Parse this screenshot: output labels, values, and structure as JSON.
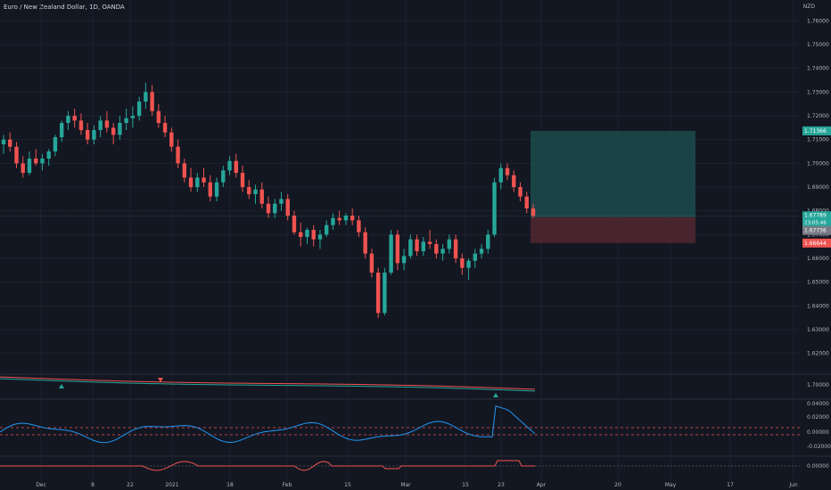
{
  "header": {
    "symbol_title": "Euro / New Zealand Dollar, 1D, OANDA",
    "currency": "NZD"
  },
  "colors": {
    "background": "#131722",
    "up": "#26a69a",
    "down": "#ef5350",
    "grid": "#1e222d",
    "profit_zone": "#1f5b5b",
    "loss_zone": "#5a2a33",
    "osc_line": "#2196f3",
    "osc_hist_up": "#26a69a",
    "osc_hist_down": "#ef5350"
  },
  "price_axis": {
    "labels": [
      "1.76000",
      "1.75000",
      "1.74000",
      "1.73000",
      "1.72000",
      "1.71000",
      "1.70000",
      "1.69000",
      "1.68000",
      "1.67000",
      "1.66000",
      "1.65000",
      "1.64000",
      "1.63000",
      "1.62000"
    ],
    "min": 1.615,
    "max": 1.765
  },
  "markers": {
    "target": "1.71366",
    "current": "1.67789",
    "countdown": "23:05:46",
    "entry": "1.67736",
    "stop": "1.66644"
  },
  "indicator_axes": {
    "ind1": [
      "1.70000"
    ],
    "ind2": [
      "0.04000",
      "0.02000",
      "0.00000",
      "-0.02000"
    ],
    "ind3": [
      "0.00000"
    ]
  },
  "time_axis": {
    "labels": [
      "Dec",
      "8",
      "22",
      "2021",
      "18",
      "Feb",
      "15",
      "Mar",
      "15",
      "23",
      "Apr",
      "20",
      "May",
      "17",
      "Jun"
    ]
  },
  "chart_data": {
    "type": "candlestick",
    "series": [
      {
        "name": "EUR/NZD",
        "ohlc": [
          [
            1.708,
            1.712,
            1.704,
            1.71
          ],
          [
            1.71,
            1.713,
            1.705,
            1.707
          ],
          [
            1.707,
            1.709,
            1.698,
            1.7
          ],
          [
            1.7,
            1.703,
            1.694,
            1.696
          ],
          [
            1.696,
            1.705,
            1.695,
            1.702
          ],
          [
            1.702,
            1.706,
            1.699,
            1.7
          ],
          [
            1.7,
            1.704,
            1.697,
            1.702
          ],
          [
            1.702,
            1.706,
            1.699,
            1.705
          ],
          [
            1.705,
            1.712,
            1.703,
            1.711
          ],
          [
            1.711,
            1.718,
            1.709,
            1.717
          ],
          [
            1.717,
            1.722,
            1.714,
            1.72
          ],
          [
            1.72,
            1.723,
            1.715,
            1.718
          ],
          [
            1.718,
            1.721,
            1.712,
            1.714
          ],
          [
            1.714,
            1.717,
            1.708,
            1.71
          ],
          [
            1.71,
            1.716,
            1.708,
            1.714
          ],
          [
            1.714,
            1.72,
            1.711,
            1.718
          ],
          [
            1.718,
            1.722,
            1.713,
            1.715
          ],
          [
            1.715,
            1.717,
            1.708,
            1.712
          ],
          [
            1.712,
            1.72,
            1.71,
            1.717
          ],
          [
            1.717,
            1.723,
            1.714,
            1.719
          ],
          [
            1.719,
            1.724,
            1.715,
            1.72
          ],
          [
            1.72,
            1.728,
            1.718,
            1.726
          ],
          [
            1.726,
            1.734,
            1.723,
            1.73
          ],
          [
            1.73,
            1.733,
            1.72,
            1.722
          ],
          [
            1.722,
            1.725,
            1.715,
            1.717
          ],
          [
            1.717,
            1.72,
            1.711,
            1.713
          ],
          [
            1.713,
            1.715,
            1.705,
            1.707
          ],
          [
            1.707,
            1.71,
            1.698,
            1.7
          ],
          [
            1.7,
            1.702,
            1.692,
            1.694
          ],
          [
            1.694,
            1.698,
            1.688,
            1.69
          ],
          [
            1.69,
            1.696,
            1.688,
            1.694
          ],
          [
            1.694,
            1.698,
            1.69,
            1.692
          ],
          [
            1.692,
            1.695,
            1.684,
            1.686
          ],
          [
            1.686,
            1.694,
            1.684,
            1.692
          ],
          [
            1.692,
            1.699,
            1.69,
            1.697
          ],
          [
            1.697,
            1.703,
            1.695,
            1.701
          ],
          [
            1.701,
            1.704,
            1.694,
            1.696
          ],
          [
            1.696,
            1.699,
            1.688,
            1.69
          ],
          [
            1.69,
            1.693,
            1.685,
            1.687
          ],
          [
            1.687,
            1.691,
            1.683,
            1.689
          ],
          [
            1.689,
            1.692,
            1.681,
            1.683
          ],
          [
            1.683,
            1.686,
            1.677,
            1.679
          ],
          [
            1.679,
            1.685,
            1.677,
            1.683
          ],
          [
            1.683,
            1.688,
            1.68,
            1.685
          ],
          [
            1.685,
            1.687,
            1.676,
            1.678
          ],
          [
            1.678,
            1.68,
            1.67,
            1.671
          ],
          [
            1.671,
            1.675,
            1.665,
            1.669
          ],
          [
            1.669,
            1.673,
            1.666,
            1.672
          ],
          [
            1.672,
            1.674,
            1.665,
            1.668
          ],
          [
            1.668,
            1.672,
            1.664,
            1.67
          ],
          [
            1.67,
            1.676,
            1.669,
            1.674
          ],
          [
            1.674,
            1.679,
            1.672,
            1.677
          ],
          [
            1.677,
            1.68,
            1.674,
            1.676
          ],
          [
            1.676,
            1.679,
            1.674,
            1.678
          ],
          [
            1.678,
            1.681,
            1.674,
            1.676
          ],
          [
            1.676,
            1.678,
            1.669,
            1.671
          ],
          [
            1.671,
            1.673,
            1.66,
            1.662
          ],
          [
            1.662,
            1.664,
            1.652,
            1.654
          ],
          [
            1.654,
            1.656,
            1.635,
            1.637
          ],
          [
            1.637,
            1.656,
            1.636,
            1.654
          ],
          [
            1.654,
            1.672,
            1.653,
            1.67
          ],
          [
            1.67,
            1.672,
            1.655,
            1.658
          ],
          [
            1.658,
            1.664,
            1.655,
            1.661
          ],
          [
            1.661,
            1.67,
            1.66,
            1.668
          ],
          [
            1.668,
            1.67,
            1.661,
            1.663
          ],
          [
            1.663,
            1.669,
            1.661,
            1.667
          ],
          [
            1.667,
            1.672,
            1.664,
            1.666
          ],
          [
            1.666,
            1.668,
            1.66,
            1.662
          ],
          [
            1.662,
            1.666,
            1.659,
            1.664
          ],
          [
            1.664,
            1.67,
            1.662,
            1.668
          ],
          [
            1.668,
            1.67,
            1.658,
            1.66
          ],
          [
            1.66,
            1.662,
            1.653,
            1.656
          ],
          [
            1.656,
            1.66,
            1.651,
            1.659
          ],
          [
            1.659,
            1.664,
            1.656,
            1.662
          ],
          [
            1.662,
            1.666,
            1.66,
            1.664
          ],
          [
            1.664,
            1.672,
            1.662,
            1.67
          ],
          [
            1.67,
            1.694,
            1.669,
            1.692
          ],
          [
            1.692,
            1.7,
            1.689,
            1.698
          ],
          [
            1.698,
            1.7,
            1.693,
            1.695
          ],
          [
            1.695,
            1.697,
            1.688,
            1.69
          ],
          [
            1.69,
            1.692,
            1.684,
            1.686
          ],
          [
            1.686,
            1.688,
            1.679,
            1.681
          ],
          [
            1.681,
            1.683,
            1.677,
            1.6779
          ]
        ]
      }
    ],
    "price_range": [
      1.615,
      1.765
    ],
    "long_position": {
      "target": 1.71366,
      "entry": 1.67736,
      "stop": 1.66644
    }
  }
}
